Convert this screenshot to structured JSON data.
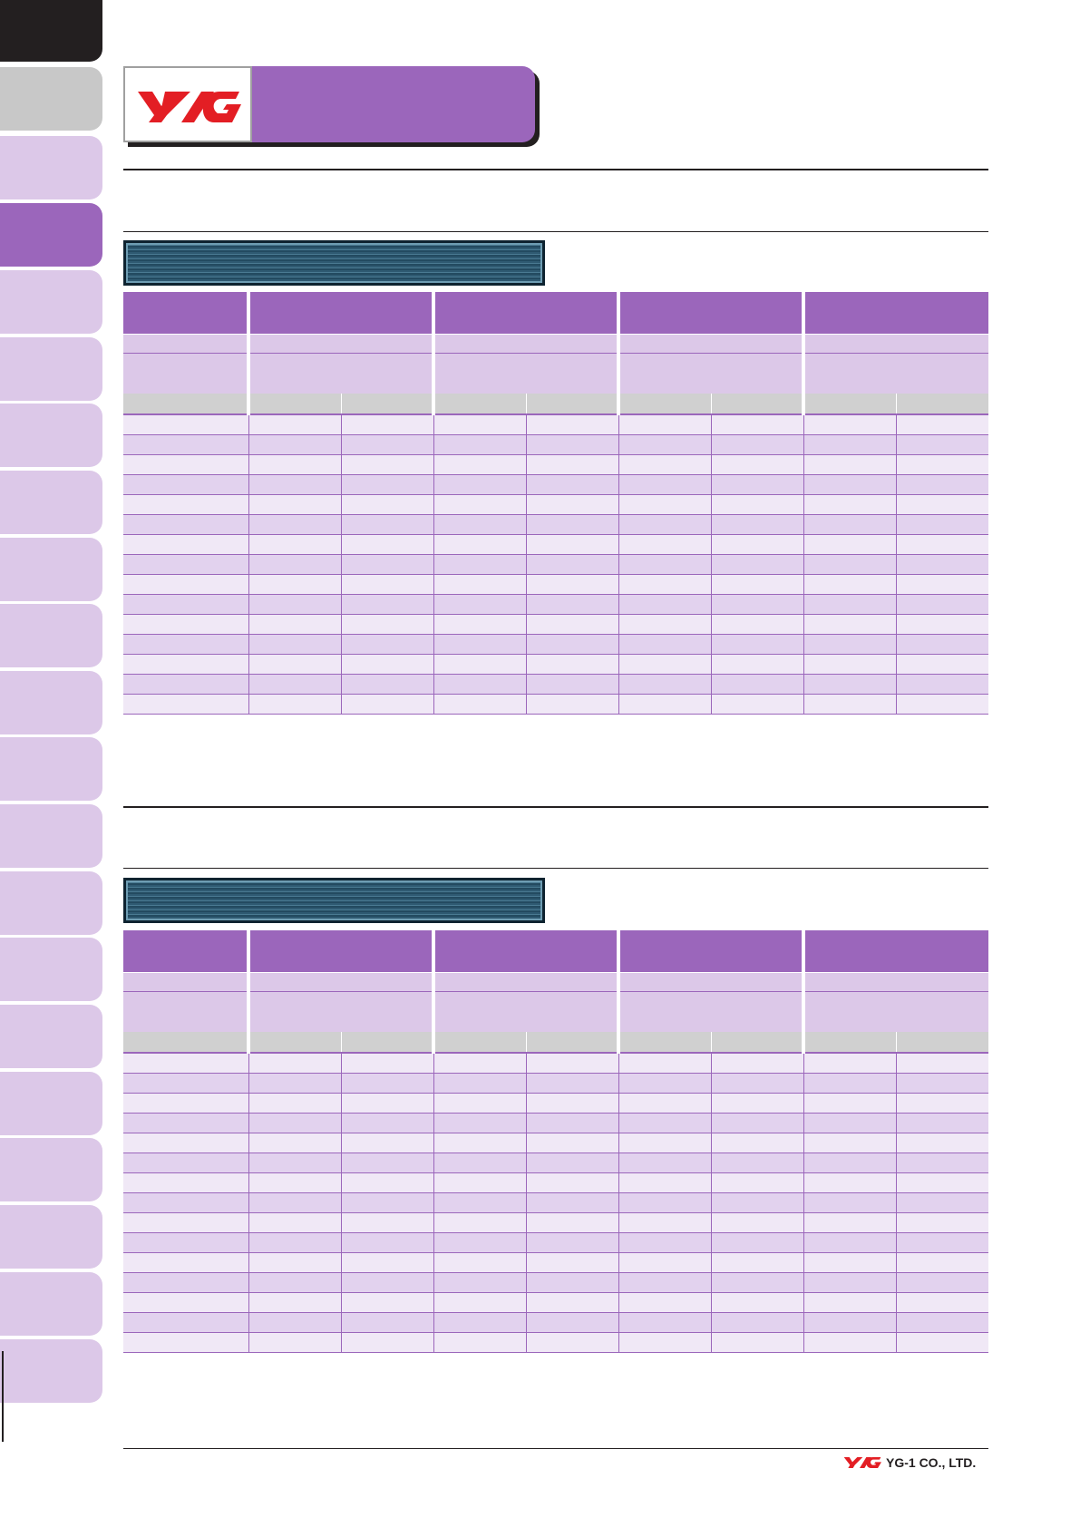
{
  "brand": {
    "logo_text": "YG",
    "company": "YG-1 CO., LTD.",
    "accent_color": "#9b66bb",
    "logo_color": "#e31e24",
    "logo_icon": "yg-logo-icon"
  },
  "header": {
    "title": ""
  },
  "sections": [
    {
      "banner_label": ""
    },
    {
      "banner_label": ""
    }
  ]
}
